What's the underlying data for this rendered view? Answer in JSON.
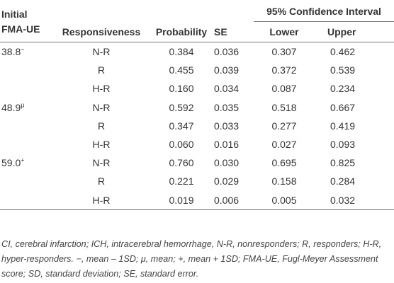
{
  "header": {
    "initial_line1": "Initial",
    "initial_line2": "FMA-UE",
    "responsiveness": "Responsiveness",
    "probability": "Probability",
    "se": "SE",
    "ci": "95% Confidence Interval",
    "lower": "Lower",
    "upper": "Upper"
  },
  "groups": [
    {
      "value": "38.8",
      "marker": "−",
      "rows": [
        {
          "resp": "N-R",
          "prob": "0.384",
          "se": "0.036",
          "lower": "0.307",
          "upper": "0.462"
        },
        {
          "resp": "R",
          "prob": "0.455",
          "se": "0.039",
          "lower": "0.372",
          "upper": "0.539"
        },
        {
          "resp": "H-R",
          "prob": "0.160",
          "se": "0.034",
          "lower": "0.087",
          "upper": "0.234"
        }
      ]
    },
    {
      "value": "48.9",
      "marker": "μ",
      "rows": [
        {
          "resp": "N-R",
          "prob": "0.592",
          "se": "0.035",
          "lower": "0.518",
          "upper": "0.667"
        },
        {
          "resp": "R",
          "prob": "0.347",
          "se": "0.033",
          "lower": "0.277",
          "upper": "0.419"
        },
        {
          "resp": "H-R",
          "prob": "0.060",
          "se": "0.016",
          "lower": "0.027",
          "upper": "0.093"
        }
      ]
    },
    {
      "value": "59.0",
      "marker": "+",
      "rows": [
        {
          "resp": "N-R",
          "prob": "0.760",
          "se": "0.030",
          "lower": "0.695",
          "upper": "0.825"
        },
        {
          "resp": "R",
          "prob": "0.221",
          "se": "0.029",
          "lower": "0.158",
          "upper": "0.284"
        },
        {
          "resp": "H-R",
          "prob": "0.019",
          "se": "0.006",
          "lower": "0.005",
          "upper": "0.032"
        }
      ]
    }
  ],
  "footnote": "CI, cerebral infarction; ICH, intracerebral hemorrhage, N-R, nonresponders; R, responders; H-R, hyper-responders. −, mean – 1SD; μ, mean; +, mean + 1SD; FMA-UE, Fugl-Meyer Assessment score; SD, standard deviation; SE, standard error."
}
